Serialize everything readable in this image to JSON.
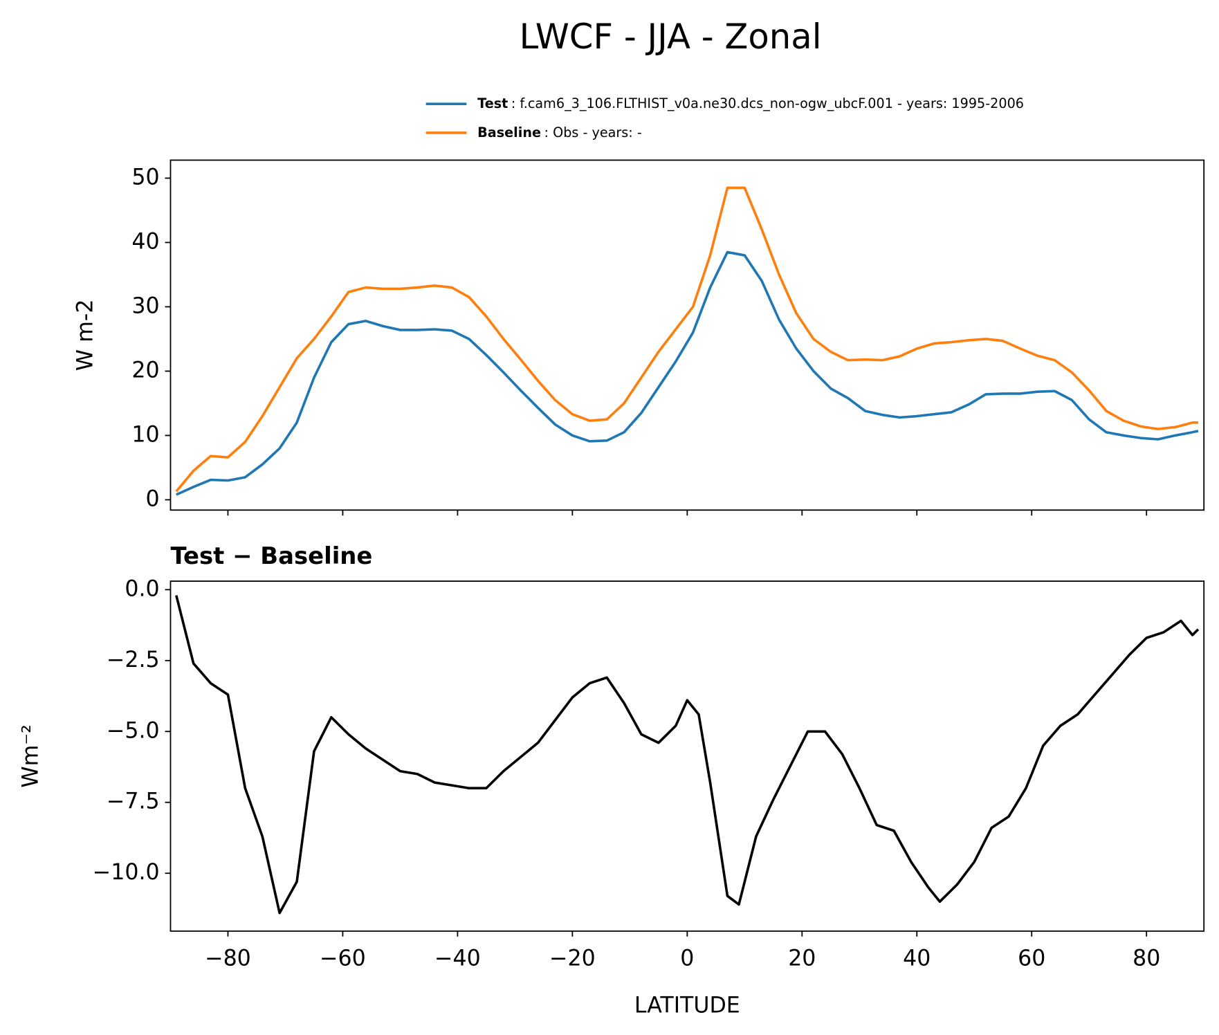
{
  "title": "LWCF - JJA - Zonal",
  "chart_data": [
    {
      "type": "line",
      "ylabel": "W m-2",
      "x": [
        -89,
        -86,
        -83,
        -80,
        -77,
        -74,
        -71,
        -68,
        -65,
        -62,
        -59,
        -56,
        -53,
        -50,
        -47,
        -44,
        -41,
        -38,
        -35,
        -32,
        -29,
        -26,
        -23,
        -20,
        -17,
        -14,
        -11,
        -8,
        -5,
        -2,
        1,
        4,
        7,
        10,
        13,
        16,
        19,
        22,
        25,
        28,
        31,
        34,
        37,
        40,
        43,
        46,
        49,
        52,
        55,
        58,
        61,
        64,
        67,
        70,
        73,
        76,
        79,
        82,
        85,
        88,
        89
      ],
      "series": [
        {
          "name": "Test",
          "description": ": f.cam6_3_106.FLTHIST_v0a.ne30.dcs_non-ogw_ubcF.001 - years: 1995-2006",
          "color": "#1f77b4",
          "values": [
            0.8,
            2,
            3.1,
            3.0,
            3.5,
            5.5,
            8,
            12,
            19,
            24.5,
            27.3,
            27.8,
            27,
            26.4,
            26.4,
            26.5,
            26.3,
            25,
            22.5,
            19.8,
            17,
            14.3,
            11.7,
            10,
            9.1,
            9.2,
            10.5,
            13.5,
            17.5,
            21.5,
            26,
            33,
            38.5,
            38,
            34,
            28,
            23.5,
            20,
            17.3,
            15.8,
            13.8,
            13.2,
            12.8,
            13,
            13.3,
            13.6,
            14.8,
            16.4,
            16.5,
            16.5,
            16.8,
            16.9,
            15.5,
            12.5,
            10.5,
            10,
            9.6,
            9.4,
            10,
            10.5,
            10.7
          ]
        },
        {
          "name": "Baseline",
          "description": ": Obs - years: -",
          "color": "#ff7f0e",
          "values": [
            1.3,
            4.5,
            6.8,
            6.6,
            9,
            13,
            17.5,
            22,
            25,
            28.5,
            32.3,
            33,
            32.8,
            32.8,
            33,
            33.3,
            33,
            31.5,
            28.5,
            25,
            21.8,
            18.5,
            15.5,
            13.3,
            12.3,
            12.5,
            15,
            19,
            23,
            26.5,
            30,
            38,
            48.5,
            48.5,
            42,
            35,
            29,
            25,
            23,
            21.7,
            21.8,
            21.7,
            22.3,
            23.5,
            24.3,
            24.5,
            24.8,
            25,
            24.7,
            23.5,
            22.4,
            21.7,
            19.8,
            17,
            13.8,
            12.3,
            11.4,
            11,
            11.3,
            12,
            12
          ]
        }
      ],
      "xlim": [
        -90,
        90
      ],
      "xticks": [
        -80,
        -60,
        -40,
        -20,
        0,
        20,
        40,
        60,
        80
      ],
      "ylim": [
        -1.6,
        52.8
      ],
      "yticks": [
        0,
        10,
        20,
        30,
        40,
        50
      ]
    },
    {
      "type": "line",
      "title": "Test − Baseline",
      "ylabel": "Wm⁻²",
      "xlabel": "LATITUDE",
      "x": [
        -89,
        -86,
        -83,
        -80,
        -77,
        -74,
        -71,
        -68,
        -65,
        -62,
        -59,
        -56,
        -53,
        -50,
        -47,
        -44,
        -41,
        -38,
        -35,
        -32,
        -29,
        -26,
        -23,
        -20,
        -17,
        -14,
        -11,
        -8,
        -5,
        -2,
        0,
        2,
        4,
        7,
        9,
        12,
        15,
        18,
        21,
        24,
        27,
        30,
        33,
        36,
        39,
        42,
        44,
        47,
        50,
        53,
        56,
        59,
        62,
        65,
        68,
        71,
        74,
        77,
        80,
        83,
        86,
        88,
        89
      ],
      "series": [
        {
          "name": "Test − Baseline",
          "color": "#000000",
          "values": [
            -0.2,
            -2.6,
            -3.3,
            -3.7,
            -7.0,
            -8.7,
            -11.4,
            -10.3,
            -5.7,
            -4.5,
            -5.1,
            -5.6,
            -6.0,
            -6.4,
            -6.5,
            -6.8,
            -6.9,
            -7.0,
            -7.0,
            -6.4,
            -5.9,
            -5.4,
            -4.6,
            -3.8,
            -3.3,
            -3.1,
            -4.0,
            -5.1,
            -5.4,
            -4.8,
            -3.9,
            -4.4,
            -6.8,
            -10.8,
            -11.1,
            -8.7,
            -7.4,
            -6.2,
            -5.0,
            -5.0,
            -5.8,
            -7.0,
            -8.3,
            -8.5,
            -9.6,
            -10.5,
            -11.0,
            -10.4,
            -9.6,
            -8.4,
            -8.0,
            -7.0,
            -5.5,
            -4.8,
            -4.4,
            -3.7,
            -3.0,
            -2.3,
            -1.7,
            -1.5,
            -1.1,
            -1.6,
            -1.4
          ]
        }
      ],
      "xlim": [
        -90,
        90
      ],
      "xticks": [
        {
          "value": -80,
          "label": "−80"
        },
        {
          "value": -60,
          "label": "−60"
        },
        {
          "value": -40,
          "label": "−40"
        },
        {
          "value": -20,
          "label": "−20"
        },
        0,
        20,
        40,
        60,
        80
      ],
      "ylim": [
        -12.04,
        0.3
      ],
      "yticks": [
        {
          "value": -10,
          "label": "−10.0"
        },
        {
          "value": -7.5,
          "label": "−7.5"
        },
        {
          "value": -5,
          "label": "−5.0"
        },
        {
          "value": -2.5,
          "label": "−2.5"
        },
        {
          "value": 0,
          "label": "0.0"
        }
      ]
    }
  ]
}
